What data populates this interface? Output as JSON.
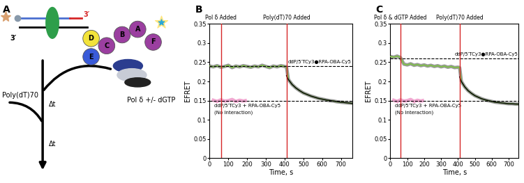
{
  "diagram": {
    "panel": "A",
    "strand_ends": [
      {
        "label": "3′",
        "color": "#d62728"
      },
      {
        "label": "3′",
        "color": "#000000"
      }
    ],
    "subunits": [
      {
        "label": "D",
        "color": "#f2e33a"
      },
      {
        "label": "E",
        "color": "#3a5bd9"
      },
      {
        "label": "C",
        "color": "#9b3fa0"
      },
      {
        "label": "B",
        "color": "#9b3fa0"
      },
      {
        "label": "A",
        "color": "#9b3fa0"
      },
      {
        "label": "F",
        "color": "#9b3fa0"
      }
    ],
    "protein": "Pol δ +/- dGTP",
    "competitor": "Poly(dT)70",
    "intervals": [
      "Δt",
      "Δt"
    ]
  },
  "chart_data": [
    {
      "type": "line",
      "panel": "B",
      "xlabel": "Time, s",
      "ylabel": "EFRET",
      "xlim": [
        0,
        760
      ],
      "xticks": [
        0,
        100,
        200,
        300,
        400,
        500,
        600,
        700
      ],
      "ylim": [
        0,
        0.35
      ],
      "yticks": [
        0,
        0.05,
        0.1,
        0.15,
        0.2,
        0.25,
        0.3,
        0.35
      ],
      "series": [
        {
          "color": "#7dc242",
          "x": [
            0,
            20,
            40,
            60,
            80,
            100,
            120,
            140,
            160,
            180,
            200,
            220,
            240,
            260,
            280,
            300,
            320,
            340,
            360,
            380,
            400,
            410,
            420,
            440,
            460,
            480,
            500,
            520,
            540,
            560,
            580,
            600,
            620,
            640,
            660,
            680,
            700,
            720,
            740,
            760
          ],
          "values": [
            0.24,
            0.238,
            0.241,
            0.237,
            0.239,
            0.242,
            0.236,
            0.24,
            0.238,
            0.241,
            0.239,
            0.237,
            0.24,
            0.238,
            0.242,
            0.239,
            0.236,
            0.24,
            0.238,
            0.241,
            0.239,
            0.238,
            0.205,
            0.192,
            0.183,
            0.176,
            0.17,
            0.166,
            0.162,
            0.159,
            0.156,
            0.154,
            0.152,
            0.15,
            0.149,
            0.147,
            0.146,
            0.145,
            0.144,
            0.143
          ]
        },
        {
          "color": "#000000",
          "x": [
            410,
            420,
            440,
            460,
            480,
            500,
            540,
            580,
            620,
            660,
            700,
            760
          ],
          "values": [
            0.215,
            0.205,
            0.192,
            0.183,
            0.176,
            0.17,
            0.162,
            0.156,
            0.152,
            0.149,
            0.146,
            0.143
          ]
        },
        {
          "color": "#f0a8d0",
          "x": [
            20,
            40,
            60,
            80,
            100,
            120,
            140,
            160,
            180,
            190
          ],
          "values": [
            0.151,
            0.148,
            0.152,
            0.149,
            0.15,
            0.153,
            0.148,
            0.151,
            0.149,
            0.15
          ]
        }
      ],
      "hlines": [
        {
          "y": 0.24,
          "line_style": "dashed",
          "label": "ddP/5′TCy3●RPA-OBA-Cy5"
        },
        {
          "y": 0.15,
          "line_style": "dashed",
          "label": "ddP/5′TCy3 + RPA-OBA-Cy5",
          "note": "(No Interaction)"
        }
      ],
      "vlines": [
        {
          "x": 60,
          "color": "#d62728",
          "label": "Pol δ Added"
        },
        {
          "x": 410,
          "color": "#d62728",
          "label": "Poly(dT)70 Added"
        }
      ]
    },
    {
      "type": "line",
      "panel": "C",
      "xlabel": "Time, s",
      "ylabel": "EFRET",
      "xlim": [
        0,
        760
      ],
      "xticks": [
        0,
        100,
        200,
        300,
        400,
        500,
        600,
        700
      ],
      "ylim": [
        0,
        0.35
      ],
      "yticks": [
        0,
        0.05,
        0.1,
        0.15,
        0.2,
        0.25,
        0.3,
        0.35
      ],
      "series": [
        {
          "color": "#7dc242",
          "x": [
            0,
            20,
            40,
            60,
            80,
            100,
            120,
            140,
            160,
            180,
            200,
            220,
            240,
            260,
            280,
            300,
            320,
            340,
            360,
            380,
            400,
            410,
            420,
            440,
            460,
            480,
            500,
            520,
            540,
            560,
            580,
            600,
            620,
            640,
            660,
            680,
            700,
            720,
            740,
            760
          ],
          "values": [
            0.265,
            0.263,
            0.266,
            0.262,
            0.245,
            0.243,
            0.246,
            0.242,
            0.244,
            0.241,
            0.243,
            0.24,
            0.242,
            0.239,
            0.241,
            0.238,
            0.24,
            0.237,
            0.239,
            0.236,
            0.237,
            0.236,
            0.2,
            0.186,
            0.176,
            0.169,
            0.163,
            0.159,
            0.155,
            0.152,
            0.15,
            0.148,
            0.146,
            0.145,
            0.144,
            0.143,
            0.142,
            0.142,
            0.141,
            0.141
          ]
        },
        {
          "color": "#000000",
          "x": [
            410,
            420,
            440,
            460,
            480,
            500,
            540,
            580,
            620,
            660,
            700,
            760
          ],
          "values": [
            0.212,
            0.2,
            0.186,
            0.176,
            0.169,
            0.163,
            0.155,
            0.15,
            0.146,
            0.144,
            0.142,
            0.141
          ]
        },
        {
          "color": "#f0a8d0",
          "x": [
            20,
            40,
            60,
            80,
            100,
            120,
            140,
            160,
            180,
            190
          ],
          "values": [
            0.151,
            0.148,
            0.152,
            0.149,
            0.15,
            0.153,
            0.148,
            0.151,
            0.149,
            0.15
          ]
        }
      ],
      "hlines": [
        {
          "y": 0.26,
          "line_style": "dashed",
          "label": "ddP/5′TCy3●RPA-OBA-Cy5"
        },
        {
          "y": 0.15,
          "line_style": "dashed",
          "label": "ddP/5′TCy3 + RPA-OBA-Cy5",
          "note": "(No Interaction)"
        }
      ],
      "vlines": [
        {
          "x": 60,
          "color": "#d62728",
          "label": "Pol δ & dGTP Added"
        },
        {
          "x": 410,
          "color": "#d62728",
          "label": "Poly(dT)70 Added"
        }
      ]
    }
  ]
}
